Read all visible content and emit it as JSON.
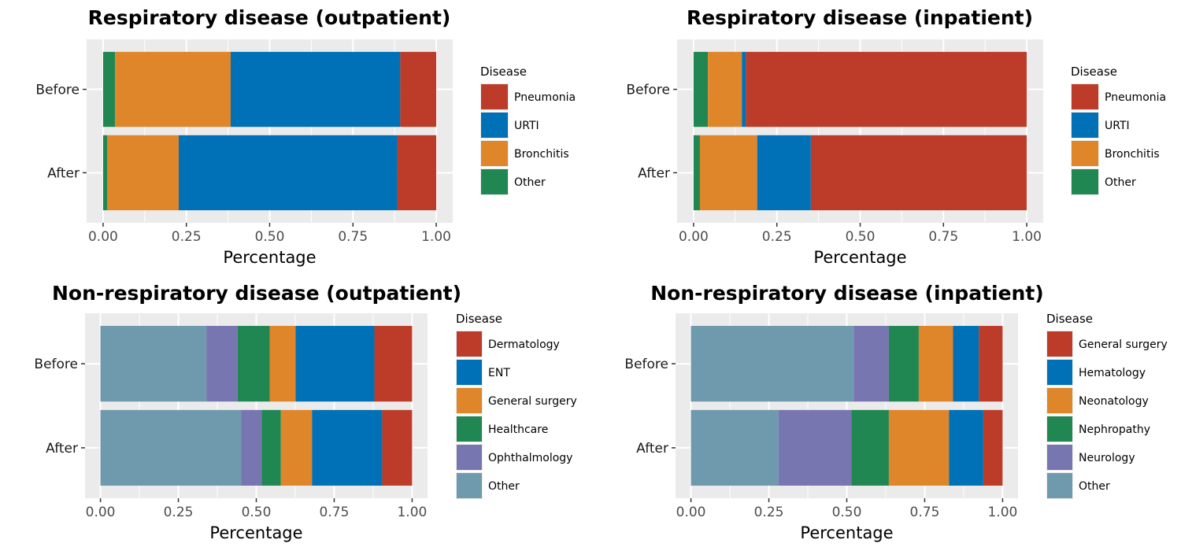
{
  "chart_data": [
    {
      "type": "bar",
      "orientation": "horizontal",
      "stacked": true,
      "title": "Respiratory disease (outpatient)",
      "xlabel": "Percentage",
      "ylabel": "",
      "xlim": [
        0,
        1
      ],
      "xticks": [
        "0.00",
        "0.25",
        "0.50",
        "0.75",
        "1.00"
      ],
      "categories": [
        "Before",
        "After"
      ],
      "legend_title": "Disease",
      "legend_position": "right",
      "grid": true,
      "series": [
        {
          "name": "Other",
          "color": "#218752",
          "values": [
            0.036,
            0.012
          ]
        },
        {
          "name": "Bronchitis",
          "color": "#e0862a",
          "values": [
            0.347,
            0.215
          ]
        },
        {
          "name": "URTI",
          "color": "#0071b6",
          "values": [
            0.509,
            0.656
          ]
        },
        {
          "name": "Pneumonia",
          "color": "#bc3c29",
          "values": [
            0.108,
            0.117
          ]
        }
      ],
      "legend_order": [
        "Pneumonia",
        "URTI",
        "Bronchitis",
        "Other"
      ]
    },
    {
      "type": "bar",
      "orientation": "horizontal",
      "stacked": true,
      "title": "Respiratory disease (inpatient)",
      "xlabel": "Percentage",
      "ylabel": "",
      "xlim": [
        0,
        1
      ],
      "xticks": [
        "0.00",
        "0.25",
        "0.50",
        "0.75",
        "1.00"
      ],
      "categories": [
        "Before",
        "After"
      ],
      "legend_title": "Disease",
      "legend_position": "right",
      "grid": true,
      "series": [
        {
          "name": "Other",
          "color": "#218752",
          "values": [
            0.043,
            0.019
          ]
        },
        {
          "name": "Bronchitis",
          "color": "#e0862a",
          "values": [
            0.102,
            0.172
          ]
        },
        {
          "name": "URTI",
          "color": "#0071b6",
          "values": [
            0.012,
            0.161
          ]
        },
        {
          "name": "Pneumonia",
          "color": "#bc3c29",
          "values": [
            0.843,
            0.648
          ]
        }
      ],
      "legend_order": [
        "Pneumonia",
        "URTI",
        "Bronchitis",
        "Other"
      ]
    },
    {
      "type": "bar",
      "orientation": "horizontal",
      "stacked": true,
      "title": "Non-respiratory disease (outpatient)",
      "xlabel": "Percentage",
      "ylabel": "",
      "xlim": [
        0,
        1
      ],
      "xticks": [
        "0.00",
        "0.25",
        "0.50",
        "0.75",
        "1.00"
      ],
      "categories": [
        "Before",
        "After"
      ],
      "legend_title": "Disease",
      "legend_position": "right",
      "grid": true,
      "series": [
        {
          "name": "Other",
          "color": "#6f99ad",
          "values": [
            0.34,
            0.452
          ]
        },
        {
          "name": "Ophthalmology",
          "color": "#7876b1",
          "values": [
            0.1,
            0.065
          ]
        },
        {
          "name": "Healthcare",
          "color": "#218752",
          "values": [
            0.103,
            0.062
          ]
        },
        {
          "name": "General surgery",
          "color": "#e0862a",
          "values": [
            0.083,
            0.1
          ]
        },
        {
          "name": "ENT",
          "color": "#0071b6",
          "values": [
            0.253,
            0.225
          ]
        },
        {
          "name": "Dermatology",
          "color": "#bc3c29",
          "values": [
            0.121,
            0.096
          ]
        }
      ],
      "legend_order": [
        "Dermatology",
        "ENT",
        "General surgery",
        "Healthcare",
        "Ophthalmology",
        "Other"
      ]
    },
    {
      "type": "bar",
      "orientation": "horizontal",
      "stacked": true,
      "title": "Non-respiratory disease (inpatient)",
      "xlabel": "Percentage",
      "ylabel": "",
      "xlim": [
        0,
        1
      ],
      "xticks": [
        "0.00",
        "0.25",
        "0.50",
        "0.75",
        "1.00"
      ],
      "categories": [
        "Before",
        "After"
      ],
      "legend_title": "Disease",
      "legend_position": "right",
      "grid": true,
      "series": [
        {
          "name": "Other",
          "color": "#6f99ad",
          "values": [
            0.522,
            0.281
          ]
        },
        {
          "name": "Neurology",
          "color": "#7876b1",
          "values": [
            0.113,
            0.234
          ]
        },
        {
          "name": "Nephropathy",
          "color": "#218752",
          "values": [
            0.096,
            0.12
          ]
        },
        {
          "name": "Neonatology",
          "color": "#e0862a",
          "values": [
            0.11,
            0.193
          ]
        },
        {
          "name": "Hematology",
          "color": "#0071b6",
          "values": [
            0.083,
            0.11
          ]
        },
        {
          "name": "General surgery",
          "color": "#bc3c29",
          "values": [
            0.076,
            0.062
          ]
        }
      ],
      "legend_order": [
        "General surgery",
        "Hematology",
        "Neonatology",
        "Nephropathy",
        "Neurology",
        "Other"
      ]
    }
  ]
}
